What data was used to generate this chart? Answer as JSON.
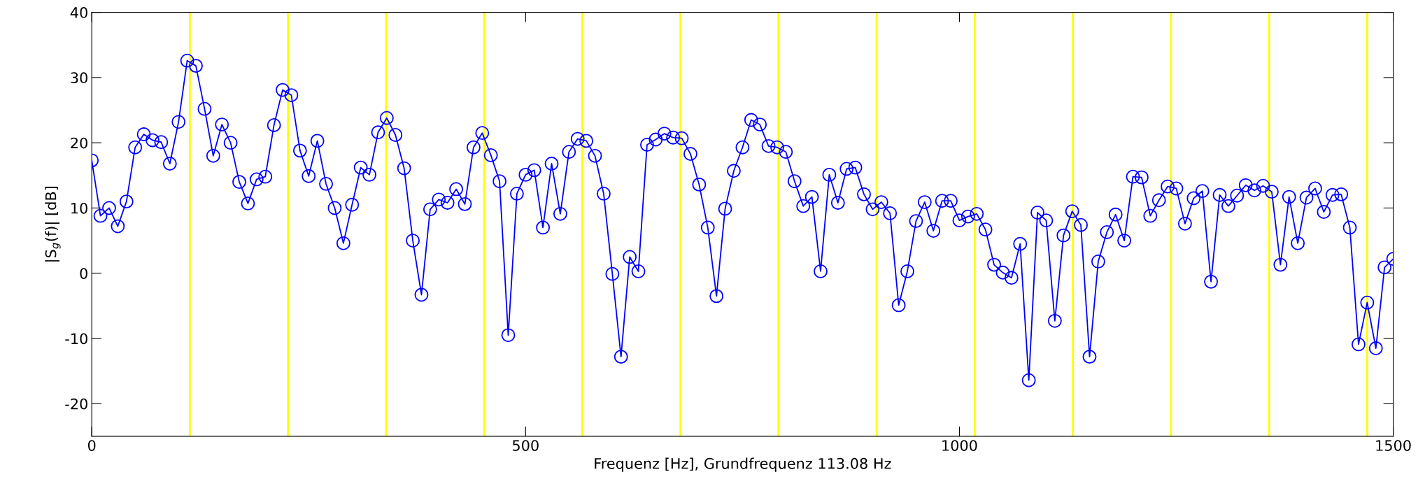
{
  "chart_data": {
    "type": "line",
    "xlabel": "Frequenz [Hz], Grundfrequenz 113.08 Hz",
    "ylabel": "|S$_{g}$(f)| [dB]",
    "xlim": [
      0,
      1500
    ],
    "xticks": [
      0,
      500,
      1000,
      1500
    ],
    "ylim": [
      -25,
      40
    ],
    "yticks": [
      -20,
      -10,
      0,
      10,
      20,
      30,
      40
    ],
    "grid": false,
    "legend": false,
    "marker": "circle",
    "line_style": "solid",
    "ref_lines": [
      {
        "axis": "x",
        "value": 113.08,
        "color": "#ffff00"
      },
      {
        "axis": "x",
        "value": 226.16,
        "color": "#ffff00"
      },
      {
        "axis": "x",
        "value": 339.24,
        "color": "#ffff00"
      },
      {
        "axis": "x",
        "value": 452.32,
        "color": "#ffff00"
      },
      {
        "axis": "x",
        "value": 565.4,
        "color": "#ffff00"
      },
      {
        "axis": "x",
        "value": 678.48,
        "color": "#ffff00"
      },
      {
        "axis": "x",
        "value": 791.56,
        "color": "#ffff00"
      },
      {
        "axis": "x",
        "value": 904.64,
        "color": "#ffff00"
      },
      {
        "axis": "x",
        "value": 1017.72,
        "color": "#ffff00"
      },
      {
        "axis": "x",
        "value": 1130.8,
        "color": "#ffff00"
      },
      {
        "axis": "x",
        "value": 1243.88,
        "color": "#ffff00"
      },
      {
        "axis": "x",
        "value": 1356.96,
        "color": "#ffff00"
      },
      {
        "axis": "x",
        "value": 1470.04,
        "color": "#ffff00"
      }
    ],
    "x": [
      0,
      10,
      20,
      30,
      40,
      50,
      60,
      70,
      80,
      90,
      100,
      110,
      120,
      130,
      140,
      150,
      160,
      170,
      180,
      190,
      200,
      210,
      220,
      230,
      240,
      250,
      260,
      270,
      280,
      290,
      300,
      310,
      320,
      330,
      340,
      350,
      360,
      370,
      380,
      390,
      400,
      410,
      420,
      430,
      440,
      450,
      460,
      470,
      480,
      490,
      500,
      510,
      520,
      530,
      540,
      550,
      560,
      570,
      580,
      590,
      600,
      610,
      620,
      630,
      640,
      650,
      660,
      670,
      680,
      690,
      700,
      710,
      720,
      730,
      740,
      750,
      760,
      770,
      780,
      790,
      800,
      810,
      820,
      830,
      840,
      850,
      860,
      870,
      880,
      890,
      900,
      910,
      920,
      930,
      940,
      950,
      960,
      970,
      980,
      990,
      1000,
      1010,
      1020,
      1030,
      1040,
      1050,
      1060,
      1070,
      1080,
      1090,
      1100,
      1110,
      1120,
      1130,
      1140,
      1150,
      1160,
      1170,
      1180,
      1190,
      1200,
      1210,
      1220,
      1230,
      1240,
      1250,
      1260,
      1270,
      1280,
      1290,
      1300,
      1310,
      1320,
      1330,
      1340,
      1350,
      1360,
      1370,
      1380,
      1390,
      1400,
      1410,
      1420,
      1430,
      1440,
      1450,
      1460,
      1470,
      1480,
      1490,
      1500
    ],
    "series": [
      {
        "color": "#0000ff",
        "values": [
          17.3,
          8.8,
          10.0,
          7.2,
          11.0,
          19.3,
          21.3,
          20.4,
          20.1,
          16.8,
          23.2,
          32.6,
          31.8,
          25.2,
          18.0,
          22.8,
          20.0,
          14.0,
          10.7,
          14.4,
          14.8,
          22.7,
          28.1,
          27.3,
          18.8,
          14.9,
          20.3,
          13.7,
          10.0,
          4.6,
          10.5,
          16.2,
          15.1,
          21.6,
          23.8,
          21.2,
          16.1,
          5.0,
          -3.3,
          9.8,
          11.3,
          10.8,
          12.9,
          10.6,
          19.3,
          21.5,
          18.1,
          14.1,
          -9.5,
          12.2,
          15.1,
          15.8,
          7.0,
          16.8,
          9.1,
          18.6,
          20.6,
          20.3,
          18.0,
          12.2,
          -0.1,
          -12.8,
          2.5,
          0.3,
          19.7,
          20.5,
          21.4,
          20.8,
          20.7,
          18.3,
          13.6,
          7.0,
          -3.5,
          9.9,
          15.7,
          19.3,
          23.5,
          22.8,
          19.5,
          19.3,
          18.6,
          14.1,
          10.3,
          11.7,
          0.3,
          15.1,
          10.8,
          16.0,
          16.2,
          12.1,
          9.8,
          10.9,
          9.2,
          -4.9,
          0.3,
          8.0,
          10.9,
          6.5,
          11.1,
          11.1,
          8.1,
          8.7,
          9.1,
          6.7,
          1.3,
          0.1,
          -0.7,
          4.5,
          -16.4,
          9.3,
          8.1,
          -7.3,
          5.8,
          9.5,
          7.4,
          -12.8,
          1.8,
          6.3,
          9.0,
          5.0,
          14.8,
          14.7,
          8.8,
          11.2,
          13.3,
          13.0,
          7.6,
          11.5,
          12.6,
          -1.3,
          12.0,
          10.3,
          11.9,
          13.5,
          12.7,
          13.4,
          12.5,
          1.3,
          11.7,
          4.6,
          11.6,
          13.0,
          9.4,
          12.0,
          12.1,
          7.0,
          -10.9,
          -4.5,
          -11.5,
          0.9,
          2.2
        ]
      }
    ]
  }
}
